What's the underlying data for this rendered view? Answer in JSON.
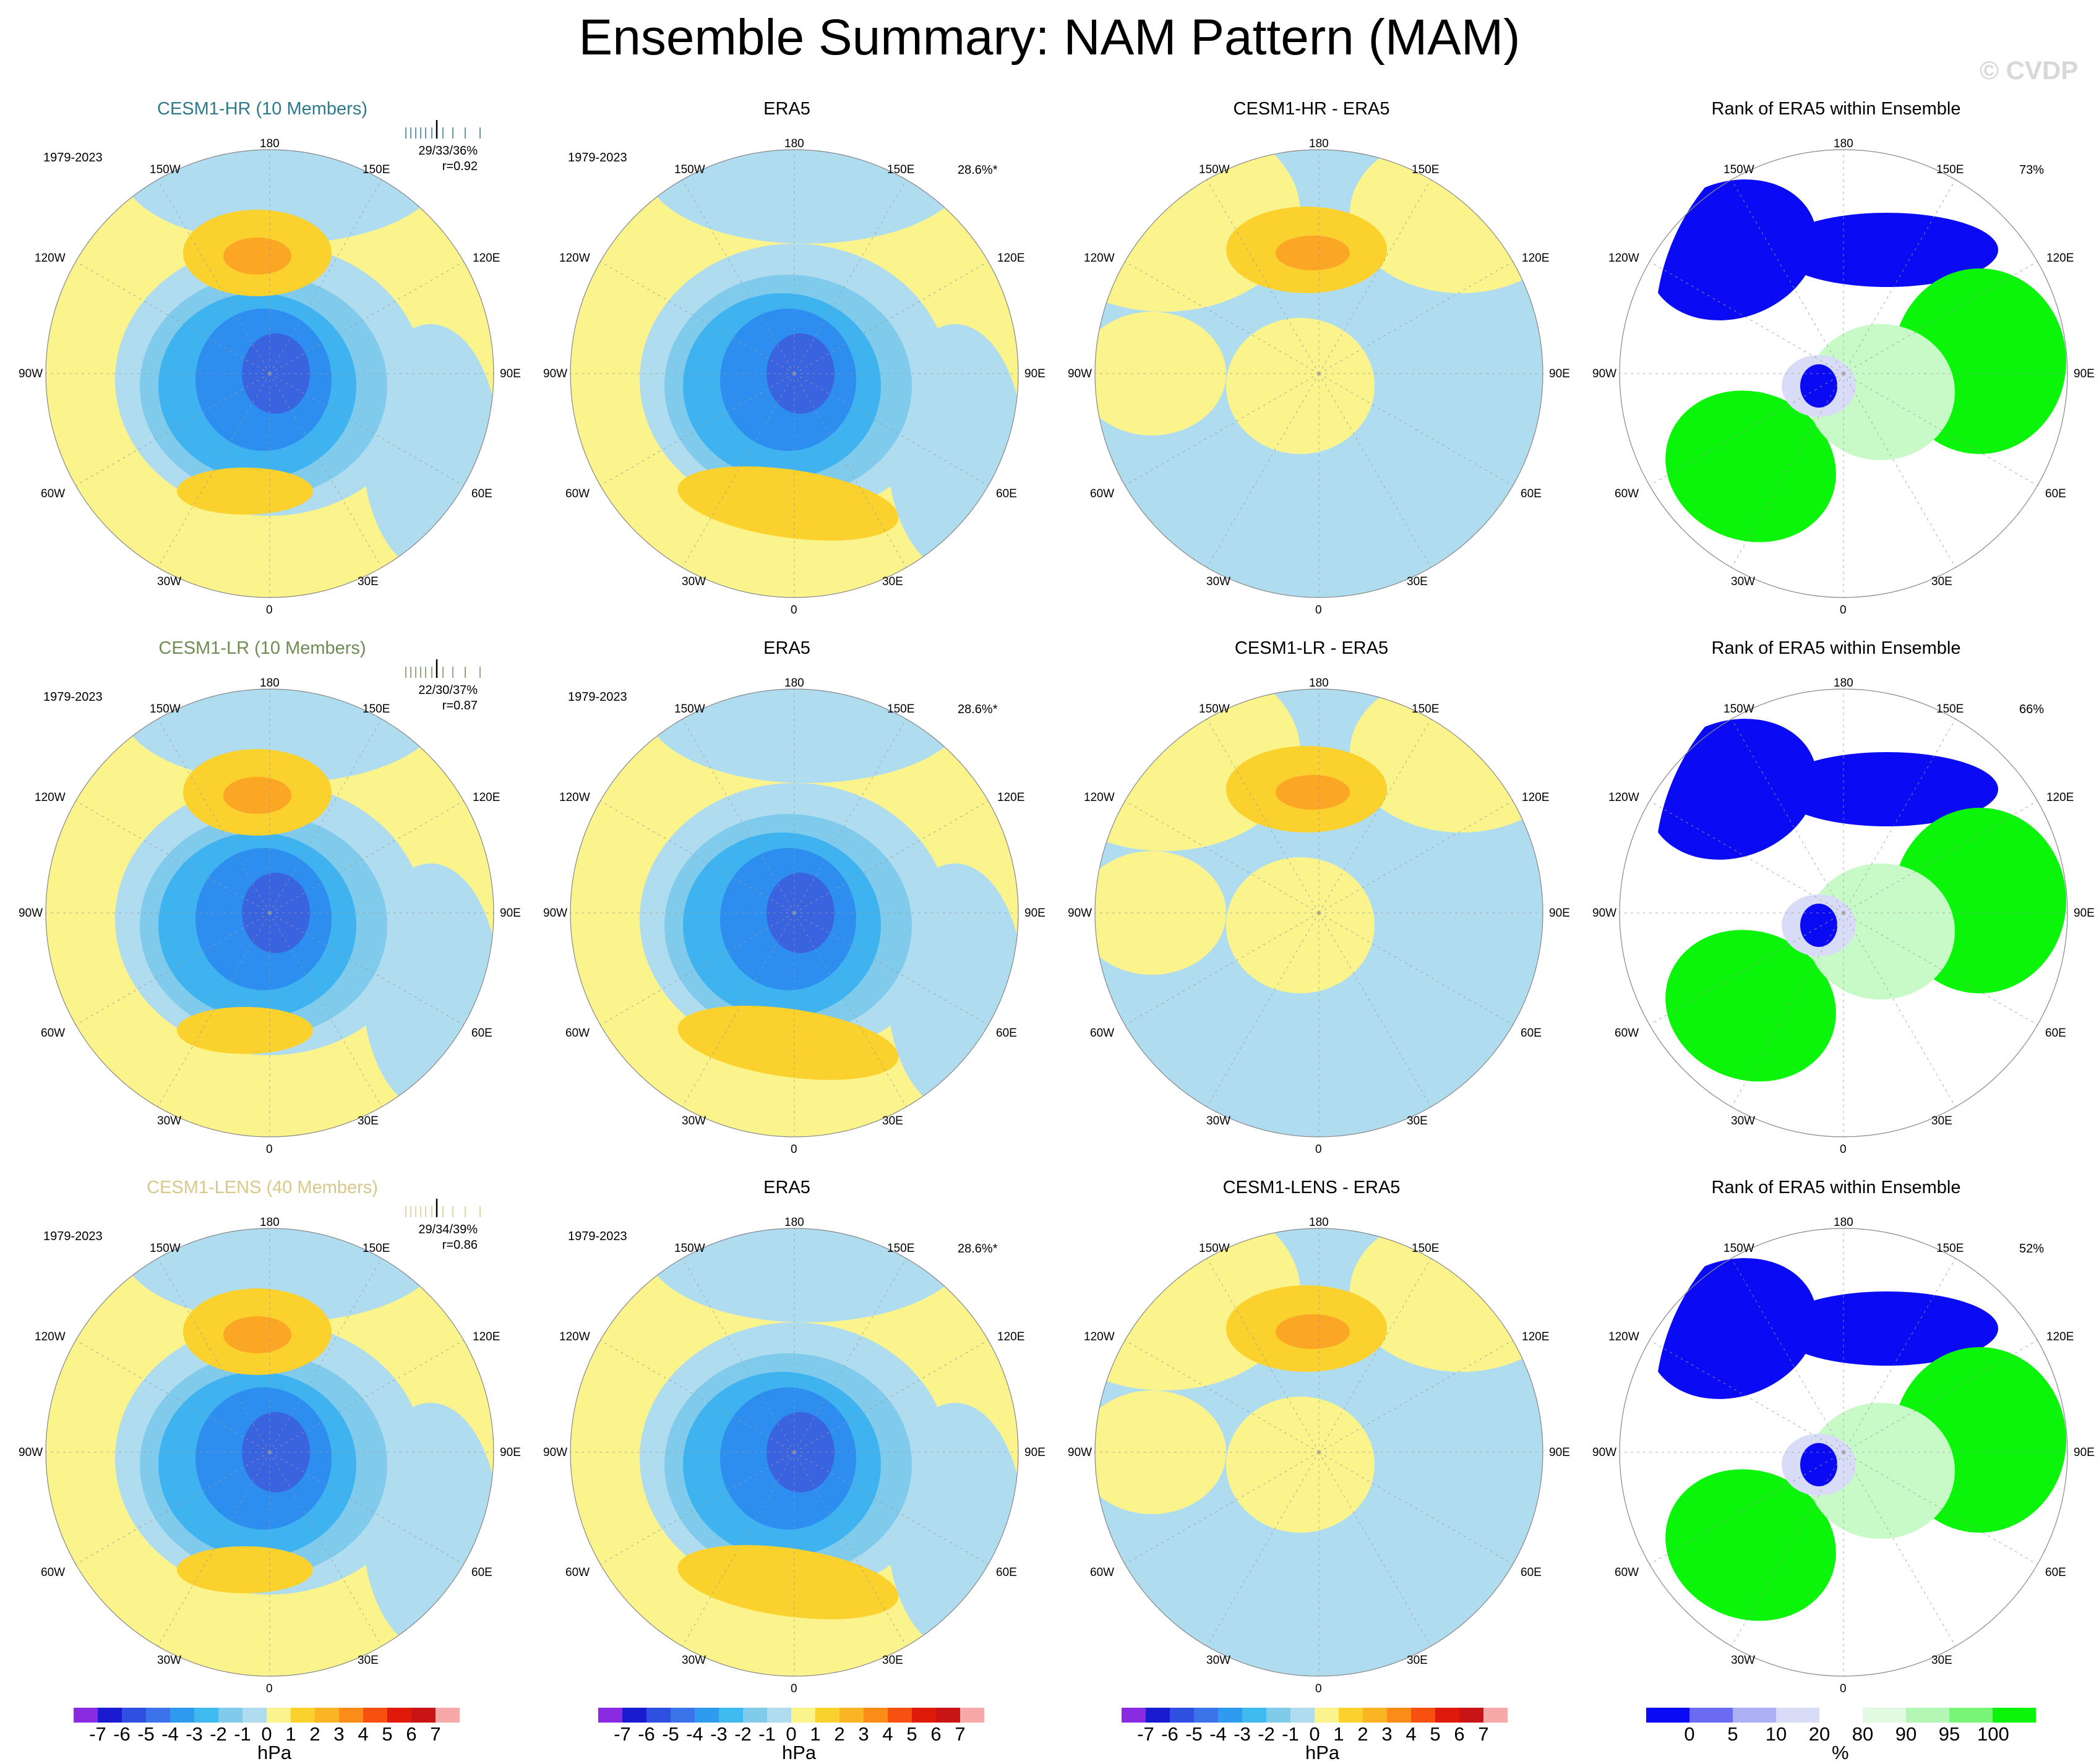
{
  "title": "Ensemble Summary: NAM Pattern (MAM)",
  "watermark": "© CVDP",
  "colors": {
    "pos1": "#fbf48c",
    "pos2": "#fbd12e",
    "pos3": "#fba624",
    "neg1": "#b0dcf0",
    "neg2": "#80cbeb",
    "neg3": "#3eb3f0",
    "neg4": "#2e8ef0",
    "neg5": "#3a63e0",
    "rank_blue": "#0a0af5",
    "rank_green": "#0bf50b",
    "rank_lightgreen": "#c8fac8",
    "rank_lightblue": "#d8dcf7"
  },
  "rows": [
    {
      "model": "CESM1-HR (10 Members)",
      "model_color": "#2e7a8c",
      "period": "1979-2023",
      "stat1": "29/33/36%",
      "stat2": "r=0.92",
      "era_title": "ERA5",
      "era_period": "1979-2023",
      "era_pct": "28.6%*",
      "diff_title": "CESM1-HR - ERA5",
      "rank_title": "Rank of ERA5 within Ensemble",
      "rank_pct": "73%"
    },
    {
      "model": "CESM1-LR (10 Members)",
      "model_color": "#6e8c54",
      "period": "1979-2023",
      "stat1": "22/30/37%",
      "stat2": "r=0.87",
      "era_title": "ERA5",
      "era_period": "1979-2023",
      "era_pct": "28.6%*",
      "diff_title": "CESM1-LR - ERA5",
      "rank_title": "Rank of ERA5 within Ensemble",
      "rank_pct": "66%"
    },
    {
      "model": "CESM1-LENS (40 Members)",
      "model_color": "#d8c88a",
      "period": "1979-2023",
      "stat1": "29/34/39%",
      "stat2": "r=0.86",
      "era_title": "ERA5",
      "era_period": "1979-2023",
      "era_pct": "28.6%*",
      "diff_title": "CESM1-LENS - ERA5",
      "rank_title": "Rank of ERA5 within Ensemble",
      "rank_pct": "52%"
    }
  ],
  "map_labels": {
    "top": "180",
    "bottom": "0",
    "left": "90W",
    "right": "90E",
    "ul1": "150W",
    "ul2": "120W",
    "ur1": "150E",
    "ur2": "120E",
    "ll1": "60W",
    "ll2": "30W",
    "lr1": "60E",
    "lr2": "30E"
  },
  "colorbar": {
    "units": "hPa",
    "ticks": [
      "-7",
      "-6",
      "-5",
      "-4",
      "-3",
      "-2",
      "-1",
      "0",
      "1",
      "2",
      "3",
      "4",
      "5",
      "6",
      "7"
    ],
    "colors": [
      "#8a2be2",
      "#1a1ad0",
      "#2e4fe0",
      "#3a73ea",
      "#2e9af0",
      "#3ebaf0",
      "#80cbeb",
      "#b0dcf0",
      "#fbf48c",
      "#fbd12e",
      "#fbb424",
      "#fb8c18",
      "#f8500e",
      "#e01a0a",
      "#c81414",
      "#f7a8a8"
    ]
  },
  "rank_colorbar": {
    "units": "%",
    "ticks": [
      "0",
      "5",
      "10",
      "20",
      "80",
      "90",
      "95",
      "100"
    ],
    "colors": [
      "#0a0af5",
      "#6a6af5",
      "#aeb0f5",
      "#d8dcf7",
      "#ffffff",
      "#e2fae2",
      "#b4f7b4",
      "#76f576",
      "#0bf50b"
    ]
  }
}
